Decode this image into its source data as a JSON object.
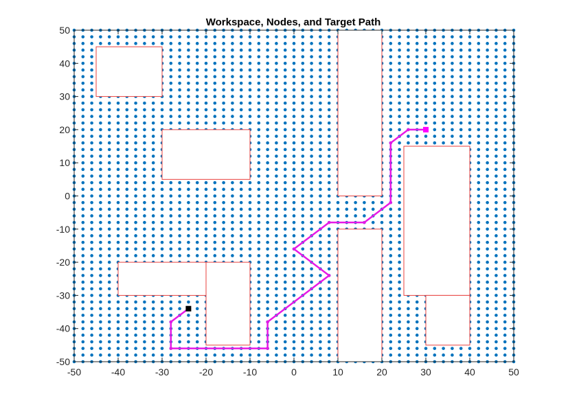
{
  "chart_data": {
    "type": "scatter",
    "title": "Workspace, Nodes, and Target Path",
    "xlabel": "",
    "ylabel": "",
    "xlim": [
      -50,
      50
    ],
    "ylim": [
      -50,
      50
    ],
    "xticks": [
      -50,
      -40,
      -30,
      -20,
      -10,
      0,
      10,
      20,
      30,
      40,
      50
    ],
    "yticks": [
      -50,
      -40,
      -30,
      -20,
      -10,
      0,
      10,
      20,
      30,
      40,
      50
    ],
    "grid": false,
    "node_grid": {
      "start": -50,
      "end": 50,
      "step": 2
    },
    "obstacles": [
      {
        "x0": -45,
        "x1": -30,
        "y0": 30,
        "y1": 45
      },
      {
        "x0": -30,
        "x1": -10,
        "y0": 5,
        "y1": 20
      },
      {
        "x0": -40,
        "x1": -20,
        "y0": -30,
        "y1": -20
      },
      {
        "x0": -20,
        "x1": -10,
        "y0": -45,
        "y1": -20
      },
      {
        "x0": 10,
        "x1": 20,
        "y0": 0,
        "y1": 50
      },
      {
        "x0": 10,
        "x1": 20,
        "y0": -50,
        "y1": -10
      },
      {
        "x0": 25,
        "x1": 40,
        "y0": -30,
        "y1": 15
      },
      {
        "x0": 30,
        "x1": 40,
        "y0": -45,
        "y1": -30
      }
    ],
    "path": [
      [
        -24,
        -34
      ],
      [
        -28,
        -38
      ],
      [
        -28,
        -46
      ],
      [
        -6,
        -46
      ],
      [
        -6,
        -38
      ],
      [
        8,
        -24
      ],
      [
        0,
        -16
      ],
      [
        8,
        -8
      ],
      [
        16,
        -8
      ],
      [
        22,
        -2
      ],
      [
        22,
        16
      ],
      [
        26,
        20
      ],
      [
        30,
        20
      ]
    ],
    "start": [
      -24,
      -34
    ],
    "goal": [
      30,
      20
    ],
    "colors": {
      "nodes": "#0072BD",
      "obstacle": "#E8413E",
      "path": "#E619E6",
      "start": "#000000",
      "goal": "#FF00FF",
      "axes": "#262626"
    }
  }
}
